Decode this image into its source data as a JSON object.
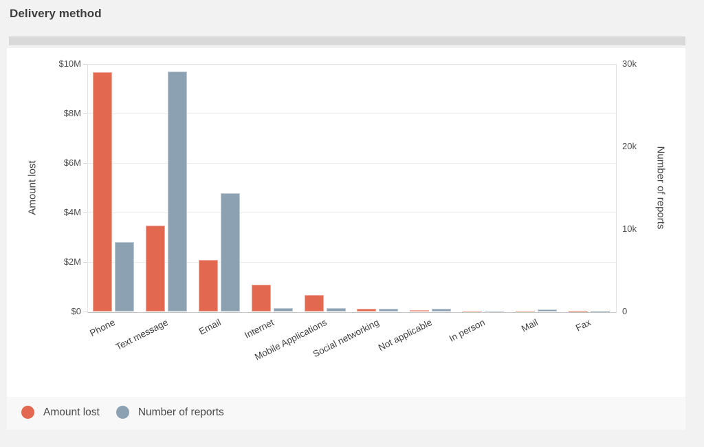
{
  "page": {
    "title": "Delivery method"
  },
  "scrollbar": {
    "orientation": "horizontal"
  },
  "chart_data": {
    "type": "bar",
    "title": "Delivery method",
    "categories": [
      "Phone",
      "Text message",
      "Email",
      "Internet",
      "Mobile Applications",
      "Social networking",
      "Not applicable",
      "In person",
      "Mail",
      "Fax"
    ],
    "series": [
      {
        "name": "Amount lost",
        "axis": "left",
        "color": "#e2694f",
        "values": [
          9670000,
          3470000,
          2080000,
          1080000,
          660000,
          110000,
          50000,
          40000,
          40000,
          3000
        ]
      },
      {
        "name": "Number of reports",
        "axis": "right",
        "color": "#8ca1b2",
        "values": [
          8450,
          29100,
          14300,
          450,
          450,
          320,
          300,
          50,
          250,
          20
        ]
      }
    ],
    "left_axis": {
      "label": "Amount lost",
      "max": 10000000,
      "ticks": [
        {
          "value": 0,
          "label": "$0"
        },
        {
          "value": 2000000,
          "label": "$2M"
        },
        {
          "value": 4000000,
          "label": "$4M"
        },
        {
          "value": 6000000,
          "label": "$6M"
        },
        {
          "value": 8000000,
          "label": "$8M"
        },
        {
          "value": 10000000,
          "label": "$10M"
        }
      ]
    },
    "right_axis": {
      "label": "Number of reports",
      "max": 30000,
      "ticks": [
        {
          "value": 0,
          "label": "0"
        },
        {
          "value": 10000,
          "label": "10k"
        },
        {
          "value": 20000,
          "label": "20k"
        },
        {
          "value": 30000,
          "label": "30k"
        }
      ]
    },
    "grid": true,
    "legend_position": "bottom-left"
  },
  "legend": {
    "items": [
      {
        "label": "Amount lost",
        "color": "#e2694f"
      },
      {
        "label": "Number of reports",
        "color": "#8ca1b2"
      }
    ]
  },
  "colors": {
    "amount_lost": "#e2694f",
    "number_of_reports": "#8ca1b2",
    "background": "#f2f2f2",
    "panel": "#ffffff",
    "legend_strip": "#f8f8f8",
    "scrollbar": "#d9d9d9"
  }
}
